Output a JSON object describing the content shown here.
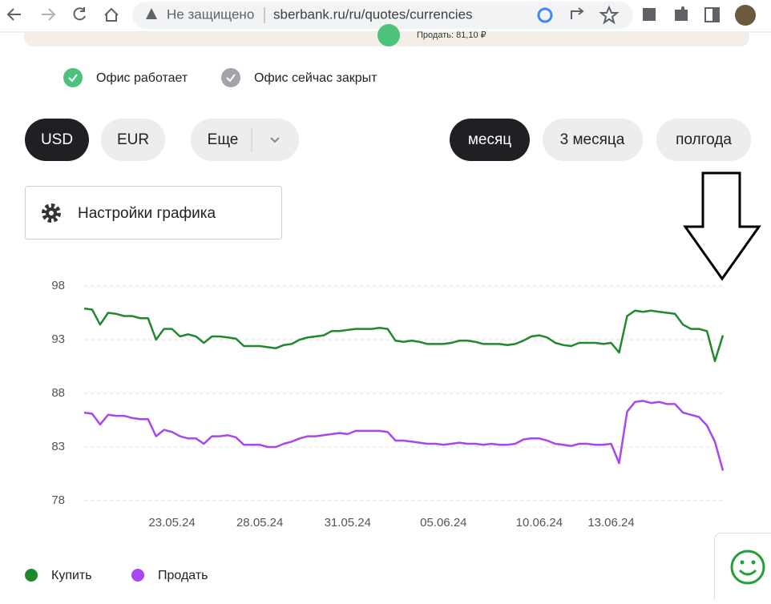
{
  "browser": {
    "security": "Не защищено",
    "url": "sberbank.ru/ru/quotes/currencies"
  },
  "map": {
    "sell_label": "Продать: 81,10 ₽"
  },
  "office_legend": [
    "Офис работает",
    "Офис сейчас закрыт"
  ],
  "currency_buttons": [
    "USD",
    "EUR",
    "Еще"
  ],
  "period_buttons": [
    "месяц",
    "3 месяца",
    "полгода"
  ],
  "settings_button": "Настройки графика",
  "chart_data": {
    "type": "line",
    "categories": [
      null,
      null,
      null,
      null,
      null,
      null,
      null,
      null,
      null,
      null,
      null,
      "23.05.24",
      null,
      null,
      null,
      null,
      null,
      null,
      null,
      null,
      null,
      null,
      "28.05.24",
      null,
      null,
      null,
      null,
      null,
      null,
      null,
      null,
      null,
      null,
      "31.05.24",
      null,
      null,
      null,
      null,
      null,
      null,
      null,
      null,
      null,
      null,
      null,
      "05.06.24",
      null,
      null,
      null,
      null,
      null,
      null,
      null,
      null,
      null,
      null,
      null,
      "10.06.24",
      null,
      null,
      null,
      null,
      null,
      null,
      null,
      null,
      "13.06.24",
      null,
      null,
      null,
      null,
      null,
      null,
      null,
      null,
      null,
      null,
      null,
      null,
      null,
      null
    ],
    "series": [
      {
        "name": "Купить",
        "color": "#1e8a2c",
        "values": [
          95.9,
          95.8,
          94.4,
          95.5,
          95.4,
          95.2,
          95.2,
          95.0,
          95.0,
          93.0,
          94.0,
          94.0,
          93.3,
          93.5,
          93.3,
          92.7,
          93.3,
          93.3,
          93.2,
          93.1,
          92.4,
          92.4,
          92.4,
          92.3,
          92.2,
          92.5,
          92.6,
          93.0,
          93.2,
          93.3,
          93.4,
          93.8,
          93.8,
          93.9,
          94.0,
          94.0,
          94.0,
          94.1,
          94.0,
          92.9,
          92.8,
          92.9,
          92.8,
          92.6,
          92.6,
          92.6,
          92.7,
          92.9,
          92.9,
          92.8,
          92.6,
          92.6,
          92.6,
          92.5,
          92.6,
          92.9,
          93.3,
          93.4,
          93.2,
          92.7,
          92.5,
          92.4,
          92.7,
          92.7,
          92.7,
          92.6,
          92.7,
          91.8,
          95.2,
          95.7,
          95.6,
          95.7,
          95.6,
          95.5,
          95.4,
          94.4,
          94.0,
          94.0,
          93.8,
          91.0,
          93.4
        ]
      },
      {
        "name": "Продать",
        "color": "#a846f2",
        "values": [
          86.2,
          86.1,
          85.1,
          86.0,
          85.9,
          85.9,
          85.7,
          85.6,
          85.6,
          84.0,
          84.6,
          84.4,
          84.0,
          83.8,
          83.8,
          83.3,
          84.0,
          84.0,
          84.1,
          83.9,
          83.2,
          83.2,
          83.2,
          83.0,
          83.0,
          83.3,
          83.5,
          83.8,
          84.0,
          84.0,
          84.1,
          84.2,
          84.3,
          84.2,
          84.5,
          84.5,
          84.5,
          84.5,
          84.4,
          83.6,
          83.6,
          83.5,
          83.4,
          83.3,
          83.3,
          83.2,
          83.3,
          83.4,
          83.3,
          83.3,
          83.2,
          83.3,
          83.2,
          83.2,
          83.3,
          83.7,
          83.8,
          83.8,
          83.6,
          83.3,
          83.2,
          83.1,
          83.3,
          83.3,
          83.2,
          83.2,
          83.3,
          81.5,
          86.3,
          87.2,
          87.3,
          87.1,
          87.2,
          87.0,
          87.0,
          86.2,
          86.0,
          85.8,
          85.0,
          83.5,
          80.8
        ]
      }
    ],
    "ylim": [
      78,
      98
    ],
    "yticks": [
      78,
      83,
      88,
      93,
      98
    ],
    "grid": true,
    "legend": "bottom-left"
  }
}
